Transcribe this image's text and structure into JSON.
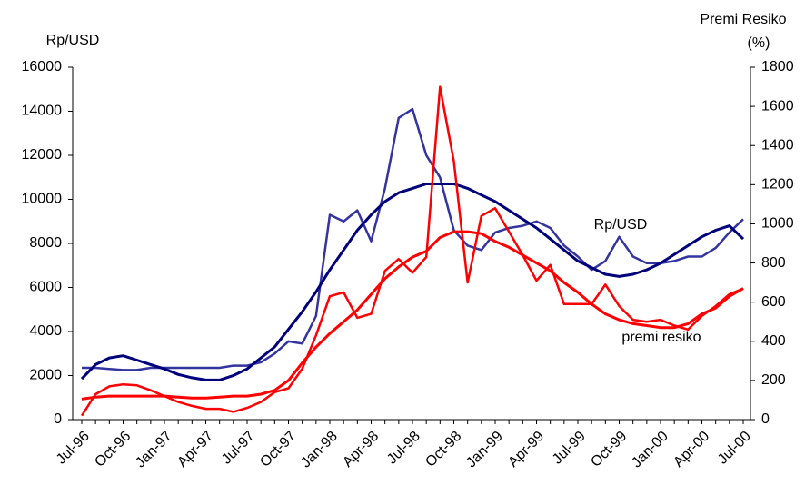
{
  "chart_data": {
    "type": "line",
    "y_label": "Rp/USD",
    "y2_label": "Premi Resiko",
    "y2_unit": "(%)",
    "categories": [
      "Jul-96",
      null,
      null,
      "Oct-96",
      null,
      null,
      "Jan-97",
      null,
      null,
      "Apr-97",
      null,
      null,
      "Jul-97",
      null,
      null,
      "Oct-97",
      null,
      null,
      "Jan-98",
      null,
      null,
      "Apr-98",
      null,
      null,
      "Jul-98",
      null,
      null,
      "Oct-98",
      null,
      null,
      "Jan-99",
      null,
      null,
      "Apr-99",
      null,
      null,
      "Jul-99",
      null,
      null,
      "Oct-99",
      null,
      null,
      "Jan-00",
      null,
      null,
      "Apr-00",
      null,
      null,
      "Jul-00"
    ],
    "series": [
      {
        "color": "#3434a0",
        "width": 2.5,
        "values": [
          2350,
          2350,
          2300,
          2250,
          2250,
          2350,
          2350,
          2350,
          2350,
          2350,
          2350,
          2450,
          2450,
          2600,
          3000,
          3550,
          3450,
          4700,
          9300,
          9000,
          9500,
          8100,
          10500,
          13700,
          14100,
          12000,
          11000,
          8600,
          7900,
          7700,
          8500,
          8700,
          8800,
          9000,
          8700,
          7900,
          7400,
          6800,
          7200,
          8300,
          7400,
          7100,
          7100,
          7200,
          7400,
          7400,
          7800,
          8500,
          9100
        ]
      },
      {
        "color": "#00007c",
        "width": 3,
        "values": [
          1850,
          2500,
          2800,
          2900,
          2700,
          2500,
          2300,
          2050,
          1900,
          1800,
          1800,
          2000,
          2300,
          2800,
          3300,
          4100,
          4900,
          5800,
          6800,
          7700,
          8600,
          9300,
          9900,
          10300,
          10500,
          10700,
          10700,
          10700,
          10500,
          10200,
          9900,
          9500,
          9100,
          8700,
          8200,
          7700,
          7200,
          6900,
          6600,
          6500,
          6600,
          6800,
          7100,
          7500,
          7900,
          8300,
          8600,
          8800,
          8200
        ]
      },
      {
        "color": "#ff0000",
        "width": 2.5,
        "axis": "y2",
        "values": [
          20,
          130,
          170,
          180,
          175,
          150,
          120,
          90,
          70,
          55,
          55,
          40,
          60,
          90,
          140,
          160,
          260,
          430,
          630,
          650,
          520,
          540,
          760,
          820,
          750,
          830,
          1700,
          1320,
          700,
          1040,
          1080,
          960,
          840,
          710,
          790,
          590,
          590,
          590,
          690,
          580,
          510,
          500,
          510,
          480,
          460,
          530,
          580,
          640,
          670
        ]
      },
      {
        "color": "#ff0000",
        "width": 3,
        "axis": "y2",
        "values": [
          105,
          115,
          120,
          120,
          120,
          120,
          120,
          115,
          110,
          110,
          115,
          120,
          120,
          130,
          150,
          200,
          290,
          370,
          440,
          500,
          560,
          640,
          720,
          780,
          830,
          860,
          930,
          960,
          960,
          950,
          910,
          880,
          840,
          800,
          760,
          700,
          650,
          590,
          540,
          510,
          490,
          480,
          470,
          470,
          490,
          540,
          570,
          630,
          670
        ]
      }
    ],
    "annotations": [
      "Rp/USD",
      "premi resiko"
    ],
    "ylim": [
      0,
      16000
    ],
    "yticks": [
      0,
      2000,
      4000,
      6000,
      8000,
      10000,
      12000,
      14000,
      16000
    ],
    "y2lim": [
      0,
      1800
    ],
    "y2ticks": [
      0,
      200,
      400,
      600,
      800,
      1000,
      1200,
      1400,
      1600,
      1800
    ],
    "grid": false
  }
}
